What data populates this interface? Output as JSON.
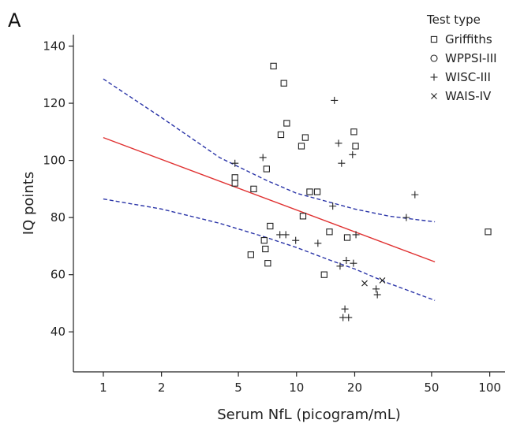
{
  "chart_data": {
    "type": "scatter",
    "panel_label": "A",
    "xlabel": "Serum NfL (picogram/mL)",
    "ylabel": "IQ points",
    "xscale": "log",
    "xlim": [
      0.7,
      120
    ],
    "ylim": [
      26,
      144
    ],
    "xticks": [
      1,
      2,
      5,
      10,
      20,
      50,
      100
    ],
    "xtick_labels": [
      "1",
      "2",
      "5",
      "10",
      "20",
      "50",
      "100"
    ],
    "yticks": [
      40,
      60,
      80,
      100,
      120,
      140
    ],
    "ytick_labels": [
      "40",
      "60",
      "80",
      "100",
      "120",
      "140"
    ],
    "grid": false,
    "legend": {
      "title": "Test type",
      "placement": "top-right",
      "entries": [
        {
          "label": "Griffiths",
          "marker": "square"
        },
        {
          "label": "WPPSI-III",
          "marker": "circle"
        },
        {
          "label": "WISC-III",
          "marker": "plus"
        },
        {
          "label": "WAIS-IV",
          "marker": "cross"
        }
      ]
    },
    "series": [
      {
        "name": "Griffiths",
        "marker": "square",
        "points": [
          [
            4.8,
            94
          ],
          [
            4.8,
            92
          ],
          [
            5.8,
            67
          ],
          [
            6,
            90
          ],
          [
            6.8,
            72
          ],
          [
            6.9,
            69
          ],
          [
            7,
            97
          ],
          [
            7.1,
            64
          ],
          [
            7.3,
            77
          ],
          [
            7.6,
            133
          ],
          [
            8.3,
            109
          ],
          [
            8.6,
            127
          ],
          [
            8.9,
            113
          ],
          [
            10.6,
            105
          ],
          [
            10.8,
            80.5
          ],
          [
            11.1,
            108
          ],
          [
            11.7,
            89
          ],
          [
            12.8,
            89
          ],
          [
            13.9,
            60
          ],
          [
            14.8,
            75
          ],
          [
            18.3,
            73
          ],
          [
            19.8,
            110
          ],
          [
            20.2,
            105
          ],
          [
            98,
            75
          ]
        ]
      },
      {
        "name": "WPPSI-III",
        "marker": "circle",
        "points": []
      },
      {
        "name": "WISC-III",
        "marker": "plus",
        "points": [
          [
            4.8,
            99
          ],
          [
            6.7,
            101
          ],
          [
            8.2,
            74
          ],
          [
            8.8,
            74
          ],
          [
            9.9,
            72
          ],
          [
            12.9,
            71
          ],
          [
            15.4,
            84
          ],
          [
            15.7,
            121
          ],
          [
            16.5,
            106
          ],
          [
            16.8,
            63
          ],
          [
            17.1,
            99
          ],
          [
            17.4,
            45
          ],
          [
            17.8,
            48
          ],
          [
            18.1,
            65
          ],
          [
            18.6,
            45
          ],
          [
            19.5,
            102
          ],
          [
            19.7,
            64
          ],
          [
            20.3,
            74
          ],
          [
            25.8,
            55
          ],
          [
            26.2,
            53
          ],
          [
            37,
            80
          ],
          [
            41,
            88
          ]
        ]
      },
      {
        "name": "WAIS-IV",
        "marker": "cross",
        "points": [
          [
            22.5,
            57
          ],
          [
            27.8,
            58
          ]
        ]
      }
    ],
    "fit_line": {
      "style": "solid",
      "color": "#e03030",
      "points": [
        [
          1,
          108
        ],
        [
          52,
          64.5
        ]
      ]
    },
    "ci_upper": {
      "style": "dashed",
      "color": "#2b35a8",
      "points": [
        [
          1,
          128.5
        ],
        [
          2,
          115
        ],
        [
          4,
          101
        ],
        [
          7,
          93
        ],
        [
          10,
          88.5
        ],
        [
          20,
          83
        ],
        [
          30,
          80.5
        ],
        [
          52,
          78.5
        ]
      ]
    },
    "ci_lower": {
      "style": "dashed",
      "color": "#2b35a8",
      "points": [
        [
          1,
          86.5
        ],
        [
          2,
          83
        ],
        [
          4,
          78
        ],
        [
          7,
          73
        ],
        [
          10,
          69.5
        ],
        [
          15,
          65
        ],
        [
          20,
          62
        ],
        [
          30,
          57
        ],
        [
          52,
          51
        ]
      ]
    },
    "colors": {
      "marker": "#222222",
      "axis": "#222222"
    }
  }
}
